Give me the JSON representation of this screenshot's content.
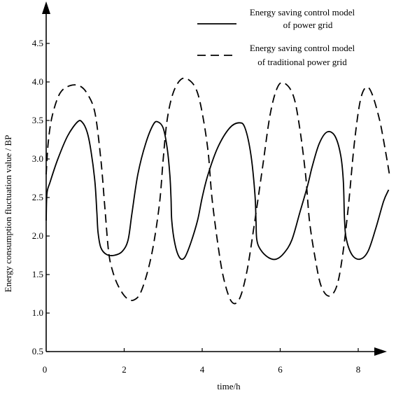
{
  "chart_data": {
    "type": "line",
    "title": "",
    "xlabel": "time/h",
    "ylabel": "Energy consumption fluctuation value / BP",
    "xlim": [
      0,
      8.8
    ],
    "ylim": [
      0.5,
      4.8
    ],
    "x_ticks": [
      "0",
      "2",
      "4",
      "6",
      "8"
    ],
    "y_ticks": [
      "0.5",
      "1.0",
      "1.5",
      "2.0",
      "2.5",
      "3.0",
      "3.5",
      "4.0",
      "4.5"
    ],
    "grid": false,
    "legend_position": "top-right",
    "legend": [
      {
        "lines": [
          "Energy saving control model",
          "of power grid"
        ],
        "style": "solid"
      },
      {
        "lines": [
          "Energy saving control model",
          "of traditional power grid"
        ],
        "style": "dashed"
      }
    ],
    "series": [
      {
        "name": "Energy saving control model of power grid",
        "style": "solid",
        "color": "#000000",
        "points": [
          [
            0.0,
            2.2
          ],
          [
            0.02,
            2.55
          ],
          [
            0.1,
            2.7
          ],
          [
            0.3,
            3.0
          ],
          [
            0.55,
            3.3
          ],
          [
            0.8,
            3.48
          ],
          [
            0.92,
            3.48
          ],
          [
            1.05,
            3.35
          ],
          [
            1.15,
            3.1
          ],
          [
            1.25,
            2.7
          ],
          [
            1.3,
            2.3
          ],
          [
            1.33,
            2.05
          ],
          [
            1.4,
            1.85
          ],
          [
            1.55,
            1.76
          ],
          [
            1.75,
            1.75
          ],
          [
            1.95,
            1.8
          ],
          [
            2.1,
            1.95
          ],
          [
            2.2,
            2.3
          ],
          [
            2.35,
            2.8
          ],
          [
            2.55,
            3.2
          ],
          [
            2.75,
            3.45
          ],
          [
            2.87,
            3.48
          ],
          [
            3.0,
            3.4
          ],
          [
            3.1,
            3.15
          ],
          [
            3.17,
            2.8
          ],
          [
            3.2,
            2.5
          ],
          [
            3.22,
            2.2
          ],
          [
            3.3,
            1.9
          ],
          [
            3.42,
            1.72
          ],
          [
            3.55,
            1.72
          ],
          [
            3.7,
            1.9
          ],
          [
            3.88,
            2.2
          ],
          [
            4.0,
            2.5
          ],
          [
            4.15,
            2.8
          ],
          [
            4.4,
            3.15
          ],
          [
            4.7,
            3.4
          ],
          [
            4.95,
            3.47
          ],
          [
            5.1,
            3.4
          ],
          [
            5.25,
            3.05
          ],
          [
            5.35,
            2.55
          ],
          [
            5.38,
            2.2
          ],
          [
            5.4,
            1.95
          ],
          [
            5.5,
            1.82
          ],
          [
            5.7,
            1.72
          ],
          [
            5.9,
            1.7
          ],
          [
            6.1,
            1.78
          ],
          [
            6.3,
            1.95
          ],
          [
            6.5,
            2.3
          ],
          [
            6.7,
            2.65
          ],
          [
            6.82,
            2.9
          ],
          [
            7.0,
            3.2
          ],
          [
            7.2,
            3.35
          ],
          [
            7.4,
            3.3
          ],
          [
            7.55,
            3.05
          ],
          [
            7.62,
            2.7
          ],
          [
            7.65,
            2.2
          ],
          [
            7.7,
            1.95
          ],
          [
            7.85,
            1.75
          ],
          [
            8.05,
            1.7
          ],
          [
            8.25,
            1.8
          ],
          [
            8.45,
            2.1
          ],
          [
            8.65,
            2.45
          ],
          [
            8.78,
            2.6
          ]
        ]
      },
      {
        "name": "Energy saving control model of traditional power grid",
        "style": "dashed",
        "color": "#000000",
        "points": [
          [
            0.0,
            2.8
          ],
          [
            0.05,
            3.2
          ],
          [
            0.15,
            3.55
          ],
          [
            0.35,
            3.85
          ],
          [
            0.6,
            3.95
          ],
          [
            0.85,
            3.95
          ],
          [
            1.05,
            3.85
          ],
          [
            1.25,
            3.6
          ],
          [
            1.4,
            3.0
          ],
          [
            1.5,
            2.4
          ],
          [
            1.6,
            1.8
          ],
          [
            1.7,
            1.55
          ],
          [
            1.85,
            1.35
          ],
          [
            2.05,
            1.2
          ],
          [
            2.25,
            1.17
          ],
          [
            2.45,
            1.3
          ],
          [
            2.7,
            1.75
          ],
          [
            2.9,
            2.4
          ],
          [
            3.0,
            3.0
          ],
          [
            3.1,
            3.5
          ],
          [
            3.25,
            3.85
          ],
          [
            3.45,
            4.03
          ],
          [
            3.65,
            4.03
          ],
          [
            3.85,
            3.9
          ],
          [
            4.0,
            3.6
          ],
          [
            4.15,
            3.1
          ],
          [
            4.25,
            2.5
          ],
          [
            4.4,
            1.9
          ],
          [
            4.55,
            1.45
          ],
          [
            4.75,
            1.15
          ],
          [
            4.95,
            1.18
          ],
          [
            5.15,
            1.55
          ],
          [
            5.35,
            2.2
          ],
          [
            5.55,
            2.9
          ],
          [
            5.75,
            3.6
          ],
          [
            5.95,
            3.95
          ],
          [
            6.15,
            3.97
          ],
          [
            6.35,
            3.8
          ],
          [
            6.5,
            3.4
          ],
          [
            6.65,
            2.8
          ],
          [
            6.75,
            2.2
          ],
          [
            6.9,
            1.7
          ],
          [
            7.05,
            1.35
          ],
          [
            7.25,
            1.22
          ],
          [
            7.45,
            1.35
          ],
          [
            7.6,
            1.75
          ],
          [
            7.75,
            2.4
          ],
          [
            7.9,
            3.2
          ],
          [
            8.05,
            3.75
          ],
          [
            8.2,
            3.93
          ],
          [
            8.35,
            3.85
          ],
          [
            8.55,
            3.5
          ],
          [
            8.7,
            3.1
          ],
          [
            8.8,
            2.8
          ]
        ]
      }
    ]
  }
}
